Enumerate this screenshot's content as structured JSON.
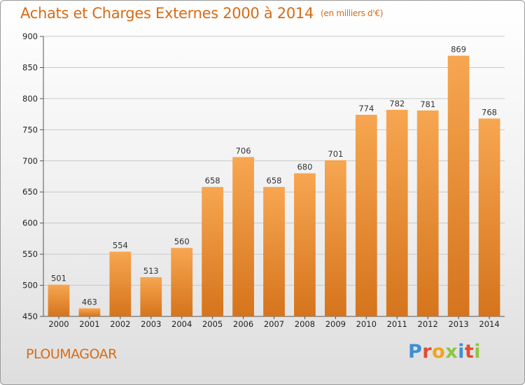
{
  "header": {
    "title": "Achats et Charges Externes 2000 à 2014",
    "subtitle": "(en milliers d'€)"
  },
  "footer": {
    "commune": "PLOUMAGOAR",
    "logo_letters": [
      "P",
      "r",
      "o",
      "x",
      "i",
      "t",
      "i"
    ]
  },
  "colors": {
    "bar_top": "#f7a651",
    "bar_bottom": "#d5741c",
    "title": "#d76b14"
  },
  "chart_data": {
    "type": "bar",
    "title": "Achats et Charges Externes 2000 à 2014",
    "subtitle": "(en milliers d'€)",
    "categories": [
      "2000",
      "2001",
      "2002",
      "2003",
      "2004",
      "2005",
      "2006",
      "2007",
      "2008",
      "2009",
      "2010",
      "2011",
      "2012",
      "2013",
      "2014"
    ],
    "values": [
      501,
      463,
      554,
      513,
      560,
      658,
      706,
      658,
      680,
      701,
      774,
      782,
      781,
      869,
      768
    ],
    "ylim": [
      450,
      900
    ],
    "yticks": [
      450,
      500,
      550,
      600,
      650,
      700,
      750,
      800,
      850,
      900
    ],
    "grid": true,
    "legend": "none"
  }
}
